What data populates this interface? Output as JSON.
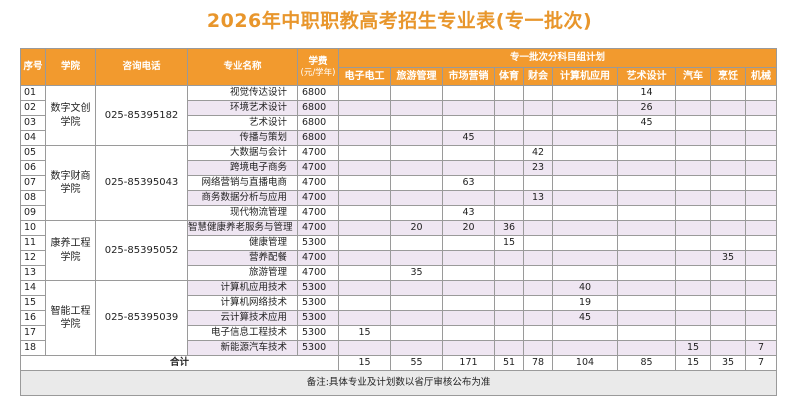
{
  "title": "2026年中职职教高考招生专业表(专一批次)",
  "headers": {
    "seq": "序号",
    "school": "学院",
    "phone": "咨询电话",
    "major": "专业名称",
    "fee": "学费",
    "fee_unit": "(元/学年)",
    "plan_group": "专一批次分科目组计划",
    "subjects": [
      "电子电工",
      "旅游管理",
      "市场营销",
      "体育",
      "财会",
      "计算机应用",
      "艺术设计",
      "汽车",
      "烹饪",
      "机械"
    ]
  },
  "groups": [
    {
      "school": "数字文创学院",
      "phone": "025-85395182",
      "rows": [
        {
          "seq": "01",
          "major": "视觉传达设计",
          "fee": "6800",
          "plan": [
            "",
            "",
            "",
            "",
            "",
            "",
            "14",
            "",
            "",
            ""
          ]
        },
        {
          "seq": "02",
          "major": "环境艺术设计",
          "fee": "6800",
          "plan": [
            "",
            "",
            "",
            "",
            "",
            "",
            "26",
            "",
            "",
            ""
          ]
        },
        {
          "seq": "03",
          "major": "艺术设计",
          "fee": "6800",
          "plan": [
            "",
            "",
            "",
            "",
            "",
            "",
            "45",
            "",
            "",
            ""
          ]
        },
        {
          "seq": "04",
          "major": "传播与策划",
          "fee": "6800",
          "plan": [
            "",
            "",
            "45",
            "",
            "",
            "",
            "",
            "",
            "",
            ""
          ]
        }
      ]
    },
    {
      "school": "数字财商学院",
      "phone": "025-85395043",
      "rows": [
        {
          "seq": "05",
          "major": "大数据与会计",
          "fee": "4700",
          "plan": [
            "",
            "",
            "",
            "",
            "42",
            "",
            "",
            "",
            "",
            ""
          ]
        },
        {
          "seq": "06",
          "major": "跨境电子商务",
          "fee": "4700",
          "plan": [
            "",
            "",
            "",
            "",
            "23",
            "",
            "",
            "",
            "",
            ""
          ]
        },
        {
          "seq": "07",
          "major": "网络营销与直播电商",
          "fee": "4700",
          "plan": [
            "",
            "",
            "63",
            "",
            "",
            "",
            "",
            "",
            "",
            ""
          ]
        },
        {
          "seq": "08",
          "major": "商务数据分析与应用",
          "fee": "4700",
          "plan": [
            "",
            "",
            "",
            "",
            "13",
            "",
            "",
            "",
            "",
            ""
          ]
        },
        {
          "seq": "09",
          "major": "现代物流管理",
          "fee": "4700",
          "plan": [
            "",
            "",
            "43",
            "",
            "",
            "",
            "",
            "",
            "",
            ""
          ]
        }
      ]
    },
    {
      "school": "康养工程学院",
      "phone": "025-85395052",
      "rows": [
        {
          "seq": "10",
          "major": "智慧健康养老服务与管理",
          "fee": "4700",
          "plan": [
            "",
            "20",
            "20",
            "36",
            "",
            "",
            "",
            "",
            "",
            ""
          ]
        },
        {
          "seq": "11",
          "major": "健康管理",
          "fee": "5300",
          "plan": [
            "",
            "",
            "",
            "15",
            "",
            "",
            "",
            "",
            "",
            ""
          ]
        },
        {
          "seq": "12",
          "major": "营养配餐",
          "fee": "4700",
          "plan": [
            "",
            "",
            "",
            "",
            "",
            "",
            "",
            "",
            "35",
            ""
          ]
        },
        {
          "seq": "13",
          "major": "旅游管理",
          "fee": "4700",
          "plan": [
            "",
            "35",
            "",
            "",
            "",
            "",
            "",
            "",
            "",
            ""
          ]
        }
      ]
    },
    {
      "school": "智能工程学院",
      "phone": "025-85395039",
      "rows": [
        {
          "seq": "14",
          "major": "计算机应用技术",
          "fee": "5300",
          "plan": [
            "",
            "",
            "",
            "",
            "",
            "40",
            "",
            "",
            "",
            ""
          ]
        },
        {
          "seq": "15",
          "major": "计算机网络技术",
          "fee": "5300",
          "plan": [
            "",
            "",
            "",
            "",
            "",
            "19",
            "",
            "",
            "",
            ""
          ]
        },
        {
          "seq": "16",
          "major": "云计算技术应用",
          "fee": "5300",
          "plan": [
            "",
            "",
            "",
            "",
            "",
            "45",
            "",
            "",
            "",
            ""
          ]
        },
        {
          "seq": "17",
          "major": "电子信息工程技术",
          "fee": "5300",
          "plan": [
            "15",
            "",
            "",
            "",
            "",
            "",
            "",
            "",
            "",
            ""
          ]
        },
        {
          "seq": "18",
          "major": "新能源汽车技术",
          "fee": "5300",
          "plan": [
            "",
            "",
            "",
            "",
            "",
            "",
            "",
            "15",
            "",
            "7"
          ]
        }
      ]
    }
  ],
  "total": {
    "label": "合计",
    "values": [
      "15",
      "55",
      "171",
      "51",
      "78",
      "104",
      "85",
      "15",
      "35",
      "7"
    ]
  },
  "note": "备注:具体专业及计划数以省厅审核公布为准",
  "colors": {
    "header_bg": "#f29a2e",
    "title": "#e8962c",
    "row_alt": "#efe6f2",
    "note_bg": "#eaeaea"
  }
}
